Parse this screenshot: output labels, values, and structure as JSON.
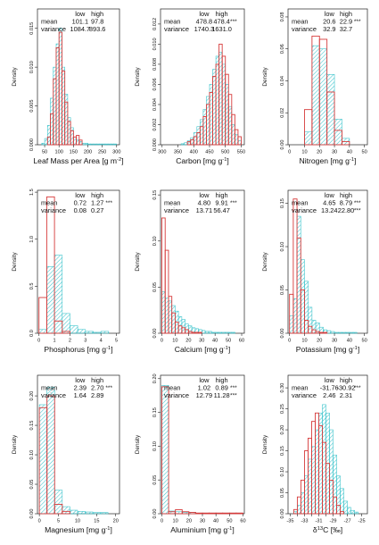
{
  "colors": {
    "low": "#d63b3b",
    "high": "#3fc4cc",
    "axis": "#222222",
    "text": "#111111"
  },
  "chart_data": [
    {
      "id": "lma",
      "type": "histogram",
      "xlabel": "Leaf Mass per Area [g m",
      "xlabel_sup": "-2",
      "xlabel_close": "]",
      "ylabel": "Density",
      "xlim": [
        25,
        310
      ],
      "ylim": [
        0,
        0.0175
      ],
      "x_ticks": [
        50,
        100,
        150,
        200,
        250,
        300
      ],
      "y_ticks": [
        0,
        0.005,
        0.01,
        0.015
      ],
      "y_tick_labels": [
        "0.000",
        "0.005",
        "0.010",
        "0.015"
      ],
      "stats": {
        "headers": [
          "low",
          "high"
        ],
        "rows": [
          {
            "label": "mean",
            "low": "101.1",
            "high": "97.8",
            "sig": ""
          },
          {
            "label": "variance",
            "low": "1084.7",
            "high": "893.6",
            "sig": ""
          }
        ]
      },
      "series": [
        {
          "name": "low",
          "bin_edges": [
            60,
            70,
            80,
            90,
            100,
            110,
            120,
            130,
            140,
            150,
            160,
            170,
            180
          ],
          "values": [
            0.001,
            0.004,
            0.0085,
            0.0125,
            0.0145,
            0.0095,
            0.0055,
            0.003,
            0.0018,
            0.001,
            0.0012,
            0.0006
          ]
        },
        {
          "name": "high",
          "bin_edges": [
            40,
            50,
            60,
            70,
            80,
            90,
            100,
            110,
            120,
            130,
            140,
            150,
            160,
            170,
            180,
            190,
            200,
            210,
            220,
            230,
            240,
            250,
            260,
            270,
            280,
            290,
            300
          ],
          "values": [
            0.0002,
            0.0008,
            0.0025,
            0.006,
            0.01,
            0.013,
            0.015,
            0.01,
            0.0065,
            0.0035,
            0.0022,
            0.001,
            0.0006,
            0.0004,
            0.0002,
            0.0002,
            0.0001,
            0.0001,
            0.0001,
            0.0001,
            0.0001,
            0.0001,
            0.0001,
            0.0001,
            0.0001,
            0.0001
          ]
        }
      ]
    },
    {
      "id": "carbon",
      "type": "histogram",
      "xlabel": "Carbon [mg g",
      "xlabel_sup": "-1",
      "xlabel_close": "]",
      "ylabel": "Density",
      "xlim": [
        295,
        560
      ],
      "ylim": [
        0,
        0.0135
      ],
      "x_ticks": [
        300,
        350,
        400,
        450,
        500,
        550
      ],
      "y_ticks": [
        0,
        0.002,
        0.004,
        0.006,
        0.008,
        0.01,
        0.012
      ],
      "y_tick_labels": [
        "0.000",
        "0.002",
        "0.004",
        "0.006",
        "0.008",
        "0.010",
        "0.012"
      ],
      "stats": {
        "headers": [
          "low",
          "high"
        ],
        "rows": [
          {
            "label": "mean",
            "low": "478.8",
            "high": "478.4",
            "sig": "***"
          },
          {
            "label": "variance",
            "low": "1740.3",
            "high": "1631.0",
            "sig": ""
          }
        ]
      },
      "series": [
        {
          "name": "low",
          "bin_edges": [
            380,
            390,
            400,
            410,
            420,
            430,
            440,
            450,
            460,
            470,
            480,
            490,
            500,
            510,
            520,
            530,
            540,
            550
          ],
          "values": [
            0.0003,
            0.0005,
            0.0008,
            0.0012,
            0.0018,
            0.0028,
            0.004,
            0.0052,
            0.0068,
            0.008,
            0.01,
            0.0088,
            0.007,
            0.005,
            0.003,
            0.0015,
            0.0008
          ]
        },
        {
          "name": "high",
          "bin_edges": [
            360,
            370,
            380,
            390,
            400,
            410,
            420,
            430,
            440,
            450,
            460,
            470,
            480,
            490,
            500,
            510,
            520,
            530,
            540,
            550
          ],
          "values": [
            0.0001,
            0.0002,
            0.0004,
            0.0007,
            0.0012,
            0.0018,
            0.0025,
            0.0035,
            0.0048,
            0.006,
            0.0075,
            0.0088,
            0.0092,
            0.008,
            0.006,
            0.0038,
            0.002,
            0.001,
            0.0004
          ]
        }
      ]
    },
    {
      "id": "nitrogen",
      "type": "histogram",
      "xlabel": "Nitrogen [mg g",
      "xlabel_sup": "-1",
      "xlabel_close": "]",
      "ylabel": "Density",
      "xlim": [
        -1,
        52
      ],
      "ylim": [
        0,
        0.085
      ],
      "x_ticks": [
        0,
        10,
        20,
        30,
        40,
        50
      ],
      "y_ticks": [
        0,
        0.02,
        0.04,
        0.06,
        0.08
      ],
      "y_tick_labels": [
        "0.00",
        "0.02",
        "0.04",
        "0.06",
        "0.08"
      ],
      "stats": {
        "headers": [
          "low",
          "high"
        ],
        "rows": [
          {
            "label": "mean",
            "low": "20.6",
            "high": "22.9",
            "sig": "***"
          },
          {
            "label": "variance",
            "low": "32.9",
            "high": "32.7",
            "sig": ""
          }
        ]
      },
      "series": [
        {
          "name": "low",
          "bin_edges": [
            10,
            15,
            20,
            25,
            30,
            35,
            40
          ],
          "values": [
            0.022,
            0.068,
            0.066,
            0.033,
            0.009,
            0.002
          ]
        },
        {
          "name": "high",
          "bin_edges": [
            10,
            15,
            20,
            25,
            30,
            35,
            40
          ],
          "values": [
            0.008,
            0.062,
            0.06,
            0.044,
            0.016,
            0.004
          ]
        }
      ]
    },
    {
      "id": "phosphorus",
      "type": "histogram",
      "xlabel": "Phosphorus [mg g",
      "xlabel_sup": "-1",
      "xlabel_close": "]",
      "ylabel": "Density",
      "xlim": [
        -0.1,
        5.2
      ],
      "ylim": [
        0,
        1.52
      ],
      "x_ticks": [
        0,
        1,
        2,
        3,
        4,
        5
      ],
      "y_ticks": [
        0,
        0.5,
        1.0,
        1.5
      ],
      "y_tick_labels": [
        "0.0",
        "0.5",
        "1.0",
        "1.5"
      ],
      "stats": {
        "headers": [
          "low",
          "high"
        ],
        "rows": [
          {
            "label": "mean",
            "low": "0.72",
            "high": "1.27",
            "sig": "***"
          },
          {
            "label": "variance",
            "low": "0.08",
            "high": "0.27",
            "sig": ""
          }
        ]
      },
      "series": [
        {
          "name": "low",
          "bin_edges": [
            0,
            0.5,
            1.0,
            1.5,
            2.0
          ],
          "values": [
            0.38,
            1.45,
            0.13,
            0.02
          ]
        },
        {
          "name": "high",
          "bin_edges": [
            0,
            0.5,
            1.0,
            1.5,
            2.0,
            2.5,
            3.0,
            3.5,
            4.0,
            4.5
          ],
          "values": [
            0.04,
            0.71,
            0.83,
            0.21,
            0.08,
            0.04,
            0.02,
            0.01,
            0.02
          ]
        }
      ]
    },
    {
      "id": "calcium",
      "type": "histogram",
      "xlabel": "Calcium [mg g",
      "xlabel_sup": "-1",
      "xlabel_close": "]",
      "ylabel": "Density",
      "xlim": [
        -1,
        62
      ],
      "ylim": [
        0,
        0.155
      ],
      "x_ticks": [
        0,
        10,
        20,
        30,
        40,
        50,
        60
      ],
      "y_ticks": [
        0,
        0.05,
        0.1,
        0.15
      ],
      "y_tick_labels": [
        "0.00",
        "0.05",
        "0.10",
        "0.15"
      ],
      "stats": {
        "headers": [
          "low",
          "high"
        ],
        "rows": [
          {
            "label": "mean",
            "low": "4.80",
            "high": "9.91",
            "sig": "***"
          },
          {
            "label": "variance",
            "low": "13.71",
            "high": "56.47",
            "sig": ""
          }
        ]
      },
      "series": [
        {
          "name": "low",
          "bin_edges": [
            0,
            2.5,
            5,
            7.5,
            10,
            12.5,
            15,
            17.5,
            20,
            22.5,
            25,
            27.5,
            30
          ],
          "values": [
            0.125,
            0.09,
            0.04,
            0.022,
            0.012,
            0.008,
            0.006,
            0.004,
            0.002,
            0.001,
            0.001,
            0.001
          ]
        },
        {
          "name": "high",
          "bin_edges": [
            0,
            2.5,
            5,
            7.5,
            10,
            12.5,
            15,
            17.5,
            20,
            22.5,
            25,
            27.5,
            30,
            32.5,
            35,
            37.5,
            40,
            42.5,
            45,
            47.5,
            50,
            52.5,
            55
          ],
          "values": [
            0.045,
            0.038,
            0.035,
            0.03,
            0.024,
            0.018,
            0.015,
            0.01,
            0.008,
            0.006,
            0.005,
            0.004,
            0.003,
            0.002,
            0.002,
            0.001,
            0.001,
            0.001,
            0.001,
            0.001,
            0.001,
            0.001
          ]
        }
      ]
    },
    {
      "id": "potassium",
      "type": "histogram",
      "xlabel": "Potassium [mg g",
      "xlabel_sup": "-1",
      "xlabel_close": "]",
      "ylabel": "Density",
      "xlim": [
        -1,
        52
      ],
      "ylim": [
        0,
        0.165
      ],
      "x_ticks": [
        0,
        10,
        20,
        30,
        40,
        50
      ],
      "y_ticks": [
        0,
        0.05,
        0.1,
        0.15
      ],
      "y_tick_labels": [
        "0.00",
        "0.05",
        "0.10",
        "0.15"
      ],
      "stats": {
        "headers": [
          "low",
          "high"
        ],
        "rows": [
          {
            "label": "mean",
            "low": "4.65",
            "high": "8.79",
            "sig": "***"
          },
          {
            "label": "variance",
            "low": "13.24",
            "high": "22.80",
            "sig": "***"
          }
        ]
      },
      "series": [
        {
          "name": "low",
          "bin_edges": [
            0,
            2.5,
            5,
            7.5,
            10,
            12.5,
            15,
            17.5,
            20,
            22.5,
            25
          ],
          "values": [
            0.045,
            0.155,
            0.11,
            0.05,
            0.015,
            0.008,
            0.004,
            0.002,
            0.001,
            0.001
          ]
        },
        {
          "name": "high",
          "bin_edges": [
            0,
            2.5,
            5,
            7.5,
            10,
            12.5,
            15,
            17.5,
            20,
            22.5,
            25,
            27.5,
            30,
            32.5,
            35,
            37.5,
            40,
            42.5,
            45
          ],
          "values": [
            0.02,
            0.04,
            0.135,
            0.085,
            0.06,
            0.03,
            0.015,
            0.012,
            0.007,
            0.004,
            0.003,
            0.002,
            0.001,
            0.001,
            0.001,
            0.001,
            0.001,
            0.001
          ]
        }
      ]
    },
    {
      "id": "magnesium",
      "type": "histogram",
      "xlabel": "Magnesium [mg g",
      "xlabel_sup": "-1",
      "xlabel_close": "]",
      "ylabel": "Density",
      "xlim": [
        -0.5,
        21
      ],
      "ylim": [
        0,
        0.235
      ],
      "x_ticks": [
        0,
        5,
        10,
        15,
        20
      ],
      "y_ticks": [
        0,
        0.05,
        0.1,
        0.15,
        0.2
      ],
      "y_tick_labels": [
        "0.00",
        "0.05",
        "0.10",
        "0.15",
        "0.20"
      ],
      "stats": {
        "headers": [
          "low",
          "high"
        ],
        "rows": [
          {
            "label": "mean",
            "low": "2.39",
            "high": "2.70",
            "sig": "***"
          },
          {
            "label": "variance",
            "low": "1.64",
            "high": "2.89",
            "sig": ""
          }
        ]
      },
      "series": [
        {
          "name": "low",
          "bin_edges": [
            0,
            2,
            4,
            6,
            8
          ],
          "values": [
            0.18,
            0.2,
            0.016,
            0.004
          ]
        },
        {
          "name": "high",
          "bin_edges": [
            0,
            2,
            4,
            6,
            8,
            10,
            12,
            14,
            16,
            18
          ],
          "values": [
            0.185,
            0.215,
            0.04,
            0.012,
            0.006,
            0.004,
            0.003,
            0.002,
            0.002
          ]
        }
      ]
    },
    {
      "id": "aluminium",
      "type": "histogram",
      "xlabel": "Aluminium [mg g",
      "xlabel_sup": "-1",
      "xlabel_close": "]",
      "ylabel": "Density",
      "xlim": [
        -1,
        61
      ],
      "ylim": [
        0,
        0.205
      ],
      "x_ticks": [
        0,
        10,
        20,
        30,
        40,
        50,
        60
      ],
      "y_ticks": [
        0,
        0.05,
        0.1,
        0.15,
        0.2
      ],
      "y_tick_labels": [
        "0.00",
        "0.05",
        "0.10",
        "0.15",
        "0.20"
      ],
      "stats": {
        "headers": [
          "low",
          "high"
        ],
        "rows": [
          {
            "label": "mean",
            "low": "1.02",
            "high": "0.89",
            "sig": "***"
          },
          {
            "label": "variance",
            "low": "12.79",
            "high": "11.28",
            "sig": "***"
          }
        ]
      },
      "series": [
        {
          "name": "low",
          "bin_edges": [
            0,
            5,
            10,
            15,
            20,
            25,
            30,
            35,
            40,
            45,
            50,
            55,
            60
          ],
          "values": [
            0.188,
            0.003,
            0.006,
            0.003,
            0.002,
            0.001,
            0.001,
            0.001,
            0.001,
            0.001,
            0.001,
            0.001
          ]
        },
        {
          "name": "high",
          "bin_edges": [
            0,
            5,
            10,
            15,
            20,
            25,
            30,
            35,
            40,
            45,
            50,
            55,
            60
          ],
          "values": [
            0.19,
            0.004,
            0.003,
            0.002,
            0.002,
            0.001,
            0.001,
            0.001,
            0.001,
            0.001,
            0.001,
            0.001
          ]
        }
      ]
    },
    {
      "id": "delta13c",
      "type": "histogram",
      "xlabel": "δ",
      "xlabel_sup": "13",
      "xlabel_close": "C [‰]",
      "ylabel": "Density",
      "xlim": [
        -35.3,
        -24.2
      ],
      "ylim": [
        0,
        0.33
      ],
      "x_ticks": [
        -35,
        -34,
        -33,
        -32,
        -31,
        -30,
        -29,
        -28,
        -27,
        -26,
        -25
      ],
      "x_tick_labels": [
        "-35",
        "",
        "-33",
        "",
        "-31",
        "",
        "-29",
        "",
        "-27",
        "",
        "-25"
      ],
      "y_ticks": [
        0,
        0.05,
        0.1,
        0.15,
        0.2,
        0.25,
        0.3
      ],
      "y_tick_labels": [
        "0.00",
        "0.05",
        "0.10",
        "0.15",
        "0.20",
        "0.25",
        "0.30"
      ],
      "stats": {
        "headers": [
          "low",
          "high"
        ],
        "rows": [
          {
            "label": "mean",
            "low": "-31.76",
            "high": "-30.92",
            "sig": "***"
          },
          {
            "label": "variance",
            "low": "2.46",
            "high": "2.31",
            "sig": ""
          }
        ]
      },
      "series": [
        {
          "name": "low",
          "bin_edges": [
            -34.5,
            -34,
            -33.5,
            -33,
            -32.5,
            -32,
            -31.5,
            -31,
            -30.5,
            -30,
            -29.5,
            -29,
            -28.5,
            -28,
            -27.5
          ],
          "values": [
            0.01,
            0.04,
            0.08,
            0.15,
            0.18,
            0.22,
            0.24,
            0.21,
            0.17,
            0.12,
            0.08,
            0.04,
            0.02,
            0.005
          ]
        },
        {
          "name": "high",
          "bin_edges": [
            -34.5,
            -34,
            -33.5,
            -33,
            -32.5,
            -32,
            -31.5,
            -31,
            -30.5,
            -30,
            -29.5,
            -29,
            -28.5,
            -28,
            -27.5,
            -27,
            -26.5,
            -26,
            -25.5
          ],
          "values": [
            0.005,
            0.02,
            0.05,
            0.09,
            0.13,
            0.16,
            0.2,
            0.24,
            0.26,
            0.24,
            0.2,
            0.14,
            0.09,
            0.06,
            0.03,
            0.015,
            0.008,
            0.004
          ]
        }
      ]
    }
  ]
}
